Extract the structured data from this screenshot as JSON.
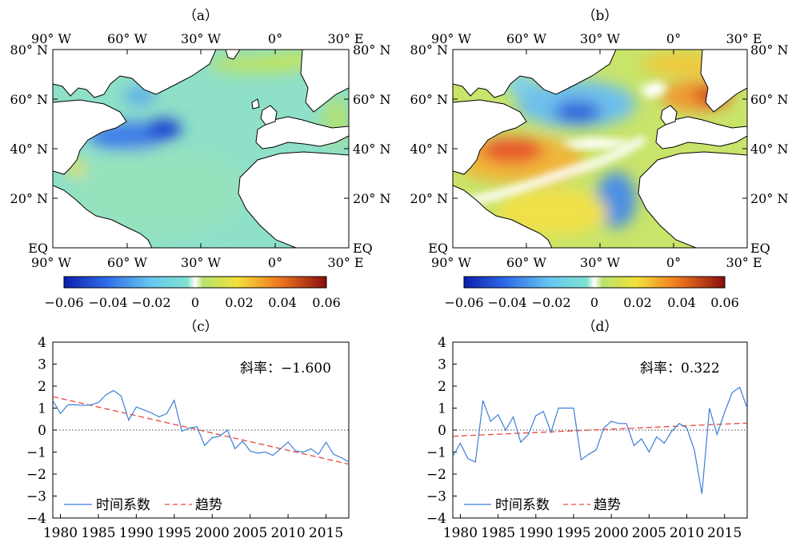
{
  "chart_data": [
    {
      "type": "heatmap",
      "panel_label": "（a）",
      "x_ticks": [
        "90° W",
        "60° W",
        "30° W",
        "0°",
        "30° E"
      ],
      "y_ticks": [
        "80° N",
        "60° N",
        "40° N",
        "20° N",
        "EQ"
      ],
      "xlim": [
        -90,
        30
      ],
      "ylim": [
        0,
        80
      ],
      "colorbar": {
        "ticks": [
          "−0.06",
          "−0.04",
          "−0.02",
          "0",
          "0.02",
          "0.04",
          "0.06"
        ],
        "range": [
          -0.06,
          0.06
        ]
      },
      "pattern": "mostly slightly negative (cyan) across the North Atlantic, strongest negative (blue) near 45°N 45–60°W, weak positive along Greenland, Norway and the coasts"
    },
    {
      "type": "heatmap",
      "panel_label": "（b）",
      "x_ticks": [
        "90° W",
        "60° W",
        "30° W",
        "0°",
        "30° E"
      ],
      "y_ticks": [
        "80° N",
        "60° N",
        "40° N",
        "20° N",
        "EQ"
      ],
      "xlim": [
        -90,
        30
      ],
      "ylim": [
        0,
        80
      ],
      "colorbar": {
        "ticks": [
          "−0.06",
          "−0.04",
          "−0.02",
          "0",
          "0.02",
          "0.04",
          "0.06"
        ],
        "range": [
          -0.06,
          0.06
        ]
      },
      "pattern": "positive (orange–red) in the subtropical western Atlantic near 35–40°N and along Scandinavia, negative (blue) in the subpolar gyre near 50–55°N and off West Africa"
    },
    {
      "type": "line",
      "panel_label": "（c）",
      "annotation": "斜率：−1.600",
      "x": [
        1979,
        1980,
        1981,
        1982,
        1983,
        1984,
        1985,
        1986,
        1987,
        1988,
        1989,
        1990,
        1991,
        1992,
        1993,
        1994,
        1995,
        1996,
        1997,
        1998,
        1999,
        2000,
        2001,
        2002,
        2003,
        2004,
        2005,
        2006,
        2007,
        2008,
        2009,
        2010,
        2011,
        2012,
        2013,
        2014,
        2015,
        2016,
        2017,
        2018
      ],
      "series": [
        {
          "name": "时间系数",
          "values": [
            1.35,
            0.75,
            1.15,
            1.15,
            1.12,
            1.15,
            1.25,
            1.6,
            1.8,
            1.55,
            0.45,
            1.05,
            0.92,
            0.78,
            0.6,
            0.75,
            1.35,
            -0.05,
            0.1,
            0.15,
            -0.7,
            -0.35,
            -0.28,
            0.0,
            -0.85,
            -0.5,
            -0.95,
            -1.05,
            -1.0,
            -1.15,
            -0.85,
            -0.55,
            -0.95,
            -1.0,
            -0.85,
            -1.1,
            -0.55,
            -1.1,
            -1.25,
            -1.45
          ]
        },
        {
          "name": "趋势",
          "start": 1.52,
          "end": -1.55
        }
      ],
      "xlim": [
        1979,
        2018
      ],
      "ylim": [
        -4,
        4
      ],
      "x_ticks": [
        1980,
        1985,
        1990,
        1995,
        2000,
        2005,
        2010,
        2015
      ],
      "y_ticks": [
        4,
        3,
        2,
        1,
        0,
        -1,
        -2,
        -3,
        -4
      ],
      "zero_line": true
    },
    {
      "type": "line",
      "panel_label": "（d）",
      "annotation": "斜率：0.322",
      "x": [
        1979,
        1980,
        1981,
        1982,
        1983,
        1984,
        1985,
        1986,
        1987,
        1988,
        1989,
        1990,
        1991,
        1992,
        1993,
        1994,
        1995,
        1996,
        1997,
        1998,
        1999,
        2000,
        2001,
        2002,
        2003,
        2004,
        2005,
        2006,
        2007,
        2008,
        2009,
        2010,
        2011,
        2012,
        2013,
        2014,
        2015,
        2016,
        2017,
        2018
      ],
      "series": [
        {
          "name": "时间系数",
          "values": [
            -1.2,
            -0.6,
            -1.3,
            -1.45,
            1.35,
            0.4,
            0.7,
            0.0,
            0.6,
            -0.55,
            -0.2,
            0.65,
            0.85,
            -0.1,
            1.0,
            1.0,
            1.0,
            -1.35,
            -1.1,
            -0.9,
            0.1,
            0.4,
            0.3,
            0.3,
            -0.7,
            -0.4,
            -1.0,
            -0.3,
            -0.6,
            -0.05,
            0.3,
            0.1,
            -0.9,
            -2.9,
            1.0,
            -0.2,
            0.8,
            1.7,
            1.95,
            1.0
          ]
        },
        {
          "name": "趋势",
          "start": -0.28,
          "end": 0.32
        }
      ],
      "xlim": [
        1979,
        2018
      ],
      "ylim": [
        -4,
        4
      ],
      "x_ticks": [
        1980,
        1985,
        1990,
        1995,
        2000,
        2005,
        2010,
        2015
      ],
      "y_ticks": [
        4,
        3,
        2,
        1,
        0,
        -1,
        -2,
        -3,
        -4
      ],
      "zero_line": true
    }
  ],
  "colors": {
    "series_line": "#3b7fd9",
    "trend_line": "#e8473f",
    "zero_line": "#444444",
    "land": "#ffffff"
  }
}
